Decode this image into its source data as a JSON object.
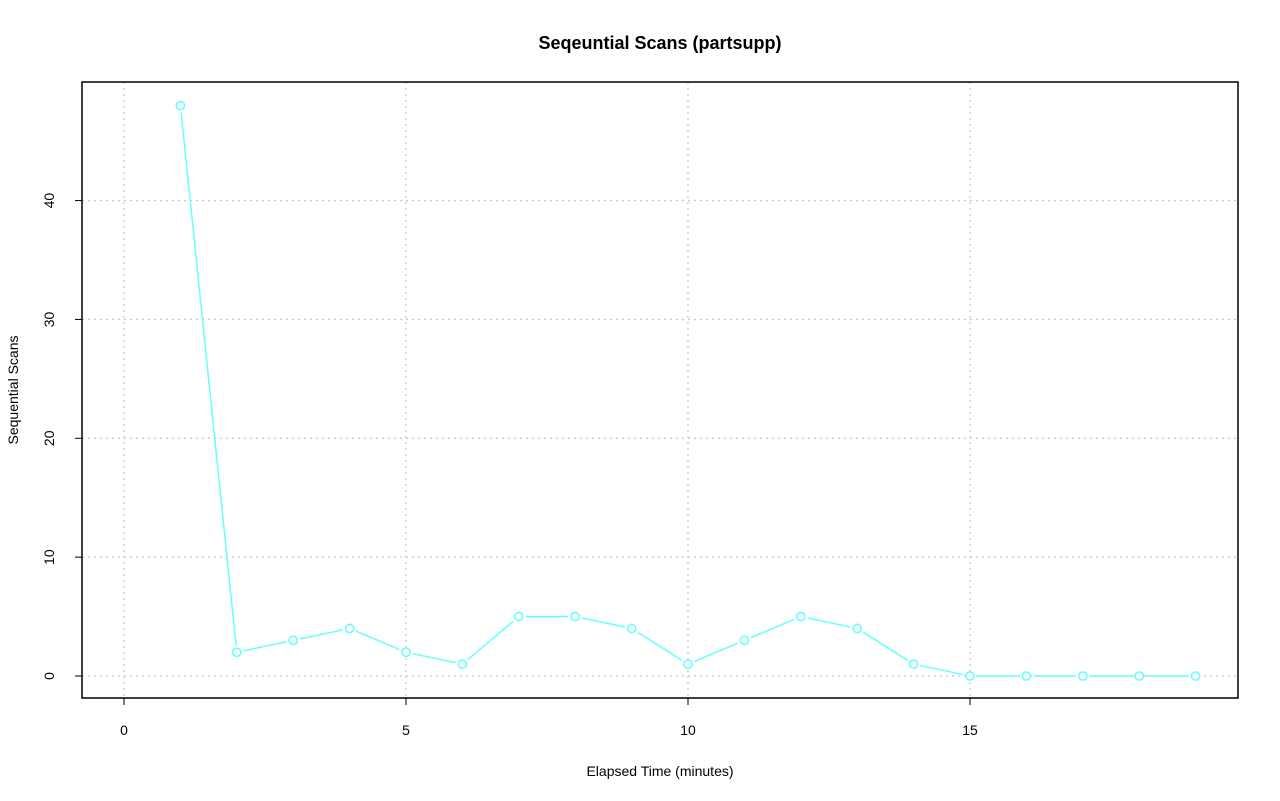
{
  "chart_data": {
    "type": "line",
    "title": "Seqeuntial Scans (partsupp)",
    "xlabel": "Elapsed Time (minutes)",
    "ylabel": "Sequential Scans",
    "xlim": [
      0,
      19
    ],
    "ylim": [
      0,
      48
    ],
    "x_ticks": [
      0,
      5,
      10,
      15
    ],
    "y_ticks": [
      0,
      10,
      20,
      30,
      40
    ],
    "grid": true,
    "colors": {
      "series": "#66ffff",
      "grid": "#c8c8c8",
      "frame": "#000000"
    },
    "series": [
      {
        "x": [
          1,
          2,
          3,
          4,
          5,
          6,
          7,
          8,
          9,
          10,
          11,
          12,
          13,
          14,
          15,
          16,
          17,
          18,
          19
        ],
        "values": [
          48,
          2,
          3,
          4,
          2,
          1,
          5,
          5,
          4,
          1,
          3,
          5,
          4,
          1,
          0,
          0,
          0,
          0,
          0
        ]
      }
    ]
  }
}
